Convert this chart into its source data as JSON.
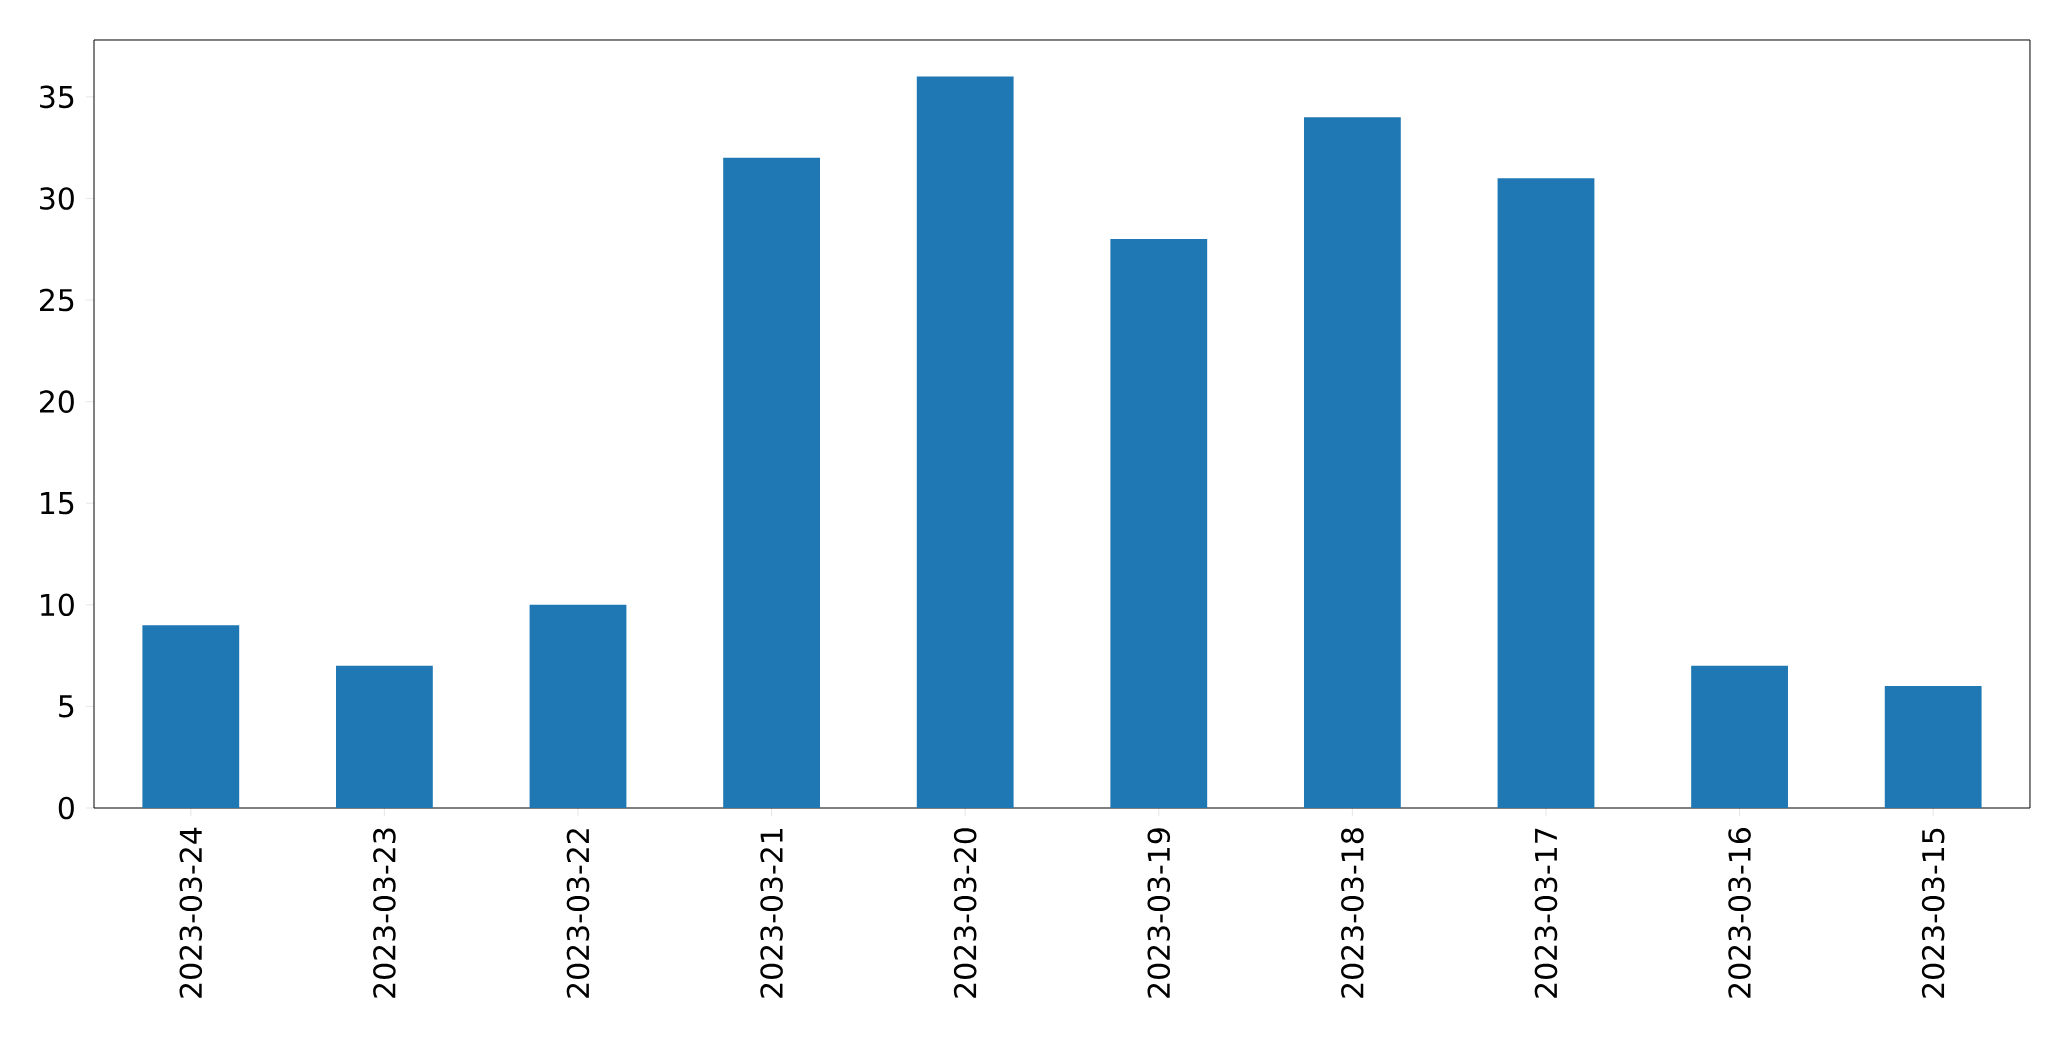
{
  "chart_data": {
    "type": "bar",
    "categories": [
      "2023-03-24",
      "2023-03-23",
      "2023-03-22",
      "2023-03-21",
      "2023-03-20",
      "2023-03-19",
      "2023-03-18",
      "2023-03-17",
      "2023-03-16",
      "2023-03-15"
    ],
    "values": [
      9,
      7,
      10,
      32,
      36,
      28,
      34,
      31,
      7,
      6
    ],
    "color": "#1f77b4",
    "ylim": [
      0,
      37.8
    ],
    "yticks": [
      0,
      5,
      10,
      15,
      20,
      25,
      30,
      35
    ]
  }
}
